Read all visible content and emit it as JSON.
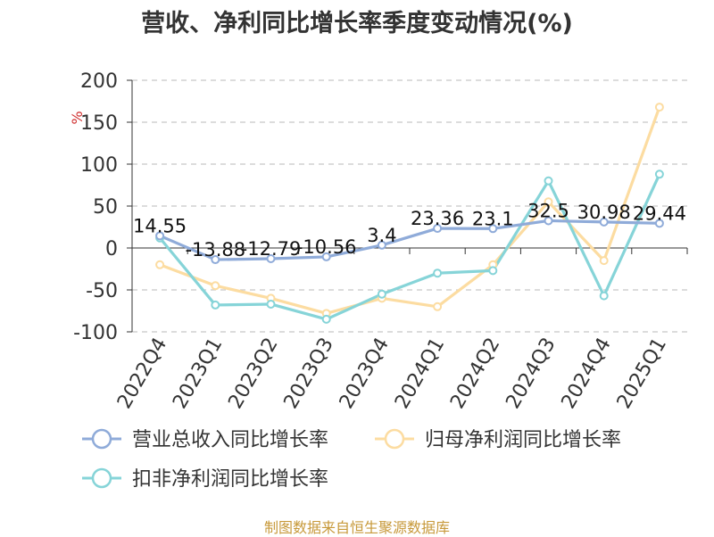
{
  "title": "营收、净利同比增长率季度变动情况(%)",
  "footer": "制图数据来自恒生聚源数据库",
  "chart_data": {
    "type": "line",
    "title": "营收、净利同比增长率季度变动情况(%)",
    "ylabel": "%",
    "ylim": [
      -100,
      200
    ],
    "yticks": [
      200,
      150,
      100,
      50,
      0,
      -50,
      -100
    ],
    "grid": true,
    "legend_position": "bottom",
    "categories": [
      "2022Q4",
      "2023Q1",
      "2023Q2",
      "2023Q3",
      "2023Q4",
      "2024Q1",
      "2024Q2",
      "2024Q3",
      "2024Q4",
      "2025Q1"
    ],
    "series": [
      {
        "name": "营业总收入同比增长率",
        "color": "#8fabd9",
        "values": [
          14.55,
          -13.88,
          -12.79,
          -10.56,
          3.4,
          23.36,
          23.1,
          32.5,
          30.98,
          29.44
        ],
        "data_labels": [
          "14.55",
          "-13.88",
          "-12.79",
          "-10.56",
          "3.4",
          "23.36",
          "23.1",
          "32.5",
          "30.98",
          "29.44"
        ]
      },
      {
        "name": "归母净利润同比增长率",
        "color": "#fcdca1",
        "values": [
          -20,
          -45,
          -60,
          -78,
          -60,
          -70,
          -20,
          55,
          -15,
          168
        ]
      },
      {
        "name": "扣非净利润同比增长率",
        "color": "#86d4d8",
        "values": [
          12,
          -68,
          -67,
          -85,
          -55,
          -30,
          -27,
          80,
          -57,
          88
        ]
      }
    ]
  }
}
